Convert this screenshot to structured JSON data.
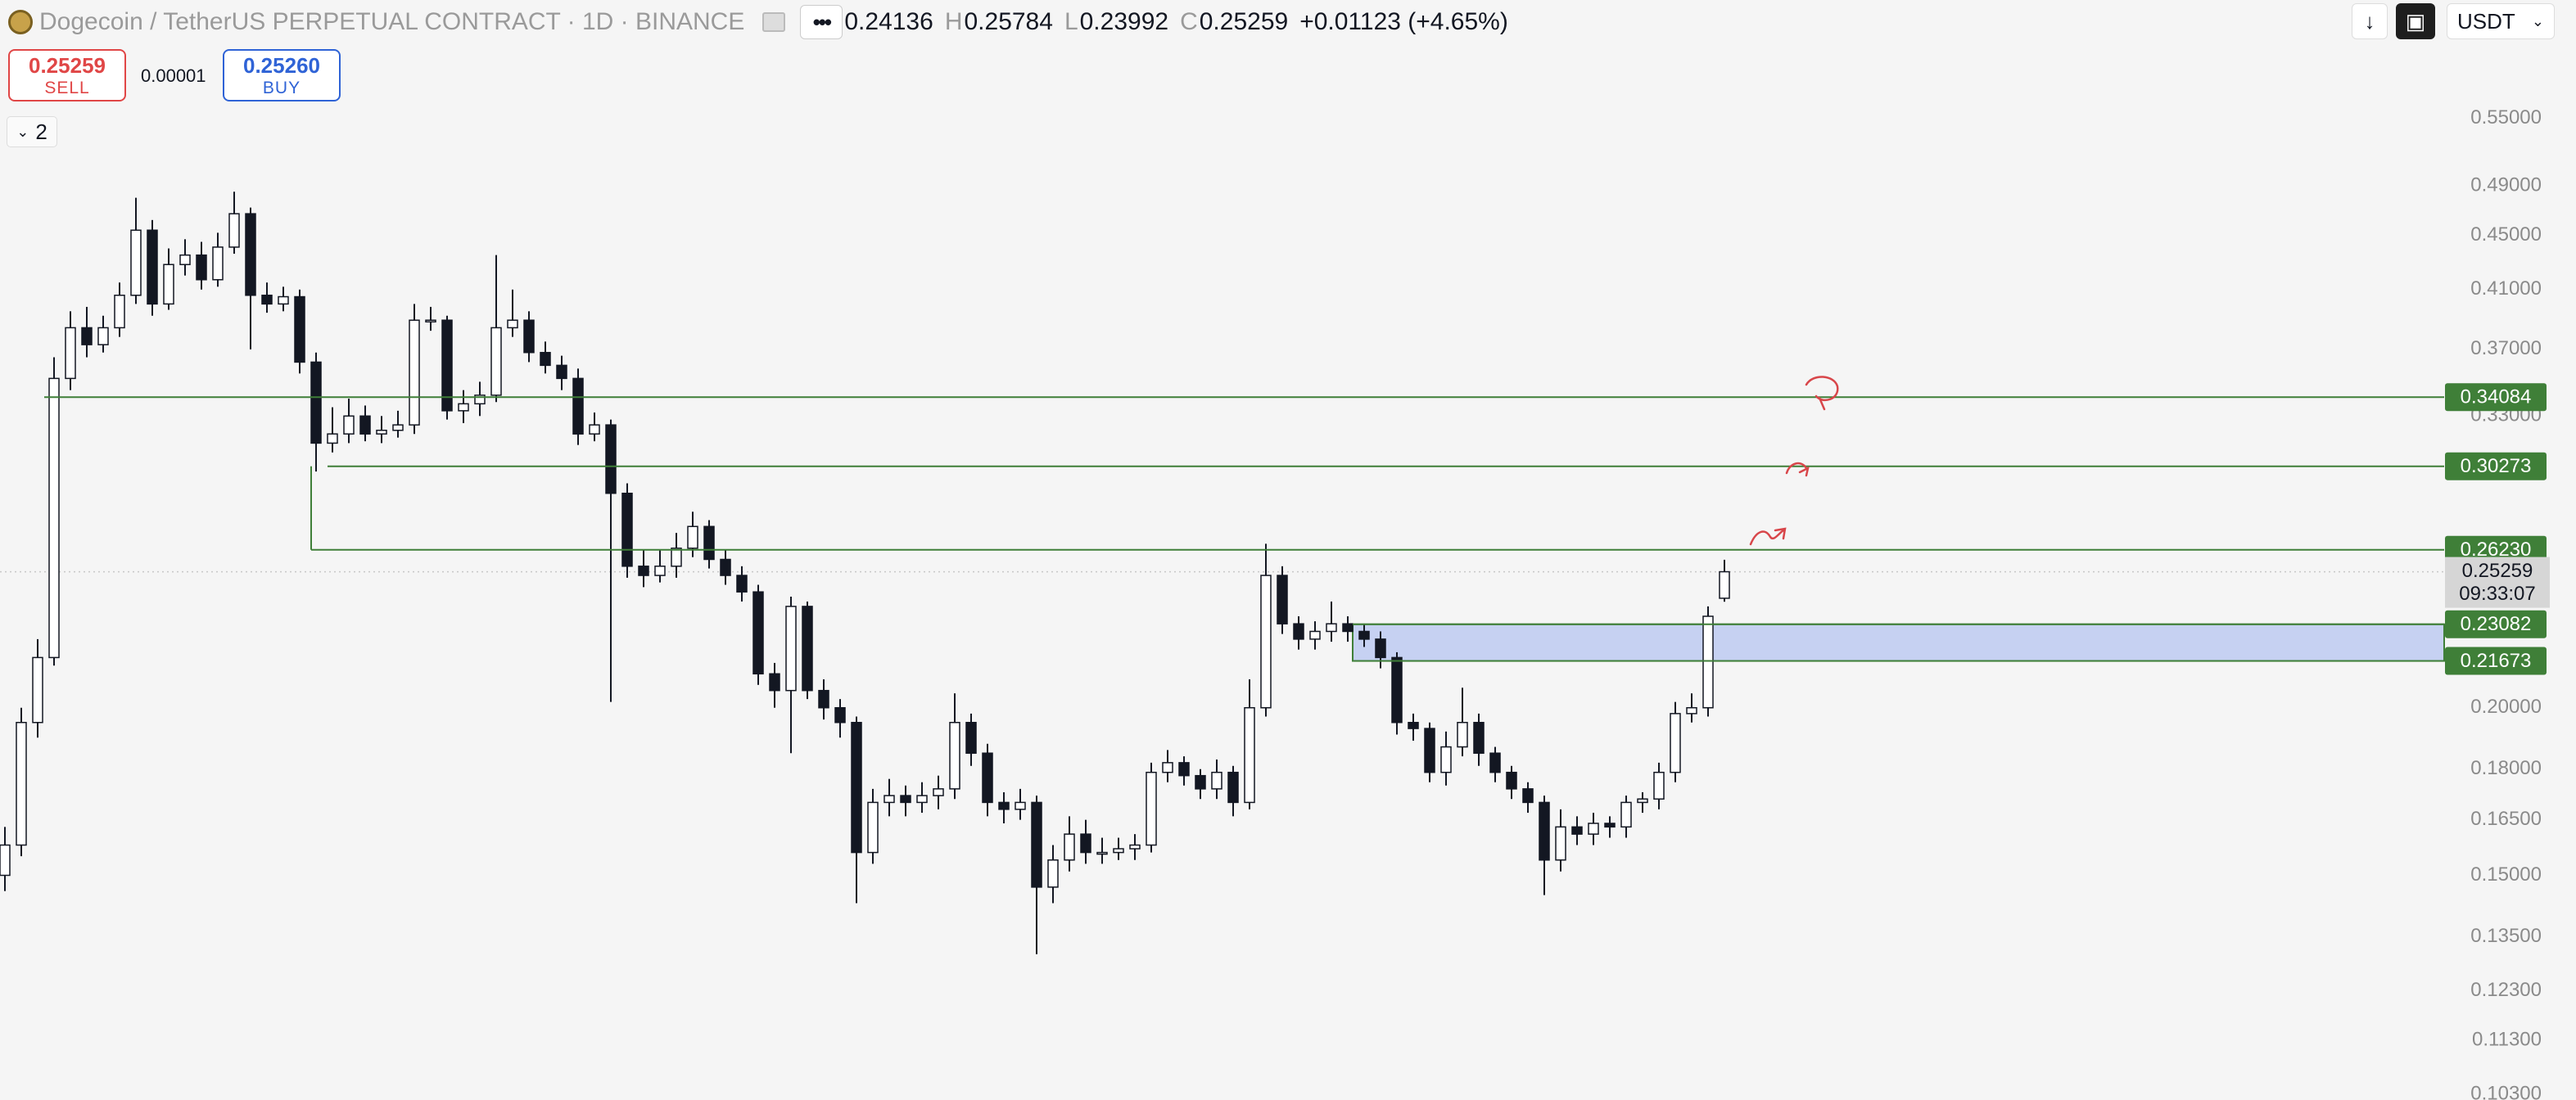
{
  "header": {
    "symbol": "Dogecoin / TetherUS PERPETUAL CONTRACT · 1D · BINANCE",
    "open": "0.24136",
    "high_key": "H",
    "high": "0.25784",
    "low_key": "L",
    "low": "0.23992",
    "close_key": "C",
    "close": "0.25259",
    "change": "+0.01123 (+4.65%)",
    "currency": "USDT"
  },
  "trade": {
    "sell_price": "0.25259",
    "sell_label": "SELL",
    "spread": "0.00001",
    "buy_price": "0.25260",
    "buy_label": "BUY",
    "indicator_count": "2"
  },
  "chart_data": {
    "type": "candlestick",
    "log_scale": true,
    "ylim": [
      0.102,
      0.674
    ],
    "yticks": [
      {
        "value": 0.55,
        "label": "0.55000"
      },
      {
        "value": 0.49,
        "label": "0.49000"
      },
      {
        "value": 0.45,
        "label": "0.45000"
      },
      {
        "value": 0.41,
        "label": "0.41000"
      },
      {
        "value": 0.37,
        "label": "0.37000"
      },
      {
        "value": 0.33,
        "label": "0.33000"
      },
      {
        "value": 0.2,
        "label": "0.20000"
      },
      {
        "value": 0.18,
        "label": "0.18000"
      },
      {
        "value": 0.165,
        "label": "0.16500"
      },
      {
        "value": 0.15,
        "label": "0.15000"
      },
      {
        "value": 0.135,
        "label": "0.13500"
      },
      {
        "value": 0.123,
        "label": "0.12300"
      },
      {
        "value": 0.113,
        "label": "0.11300"
      },
      {
        "value": 0.103,
        "label": "0.10300"
      }
    ],
    "up_color": "#ffffff",
    "down_color": "#131722",
    "open": [
      0.15,
      0.158,
      0.195,
      0.218,
      0.352,
      0.384,
      0.373,
      0.384,
      0.406,
      0.454,
      0.4,
      0.428,
      0.435,
      0.417,
      0.441,
      0.467,
      0.406,
      0.4,
      0.405,
      0.362,
      0.315,
      0.32,
      0.33,
      0.32,
      0.322,
      0.325,
      0.389,
      0.389,
      0.333,
      0.337,
      0.342,
      0.384,
      0.389,
      0.368,
      0.36,
      0.352,
      0.32,
      0.325,
      0.289,
      0.255,
      0.251,
      0.255,
      0.263,
      0.273,
      0.258,
      0.251,
      0.244,
      0.212,
      0.206,
      0.238,
      0.206,
      0.2,
      0.195,
      0.156,
      0.17,
      0.172,
      0.17,
      0.172,
      0.174,
      0.195,
      0.185,
      0.17,
      0.168,
      0.17,
      0.147,
      0.154,
      0.161,
      0.156,
      0.156,
      0.157,
      0.158,
      0.179,
      0.182,
      0.178,
      0.174,
      0.179,
      0.17,
      0.2,
      0.251,
      0.231,
      0.225,
      0.228,
      0.231,
      0.228,
      0.225,
      0.218,
      0.195,
      0.193,
      0.179,
      0.187,
      0.195,
      0.185,
      0.179,
      0.174,
      0.17,
      0.154,
      0.163,
      0.161,
      0.164,
      0.163,
      0.17,
      0.171,
      0.179,
      0.198,
      0.2,
      0.24136
    ],
    "high": [
      0.163,
      0.2,
      0.225,
      0.365,
      0.395,
      0.398,
      0.392,
      0.415,
      0.48,
      0.462,
      0.44,
      0.447,
      0.445,
      0.452,
      0.485,
      0.472,
      0.415,
      0.412,
      0.41,
      0.368,
      0.335,
      0.34,
      0.336,
      0.33,
      0.333,
      0.4,
      0.398,
      0.392,
      0.345,
      0.35,
      0.435,
      0.41,
      0.395,
      0.375,
      0.366,
      0.358,
      0.332,
      0.328,
      0.294,
      0.262,
      0.262,
      0.27,
      0.28,
      0.276,
      0.262,
      0.255,
      0.247,
      0.216,
      0.242,
      0.24,
      0.21,
      0.203,
      0.197,
      0.174,
      0.177,
      0.175,
      0.176,
      0.178,
      0.205,
      0.198,
      0.188,
      0.173,
      0.174,
      0.172,
      0.158,
      0.166,
      0.165,
      0.16,
      0.16,
      0.161,
      0.182,
      0.186,
      0.184,
      0.18,
      0.183,
      0.181,
      0.21,
      0.265,
      0.255,
      0.234,
      0.232,
      0.24,
      0.234,
      0.231,
      0.228,
      0.22,
      0.198,
      0.195,
      0.192,
      0.207,
      0.198,
      0.187,
      0.181,
      0.176,
      0.172,
      0.168,
      0.166,
      0.167,
      0.166,
      0.172,
      0.173,
      0.182,
      0.202,
      0.205,
      0.238,
      0.25784
    ],
    "low": [
      0.146,
      0.155,
      0.19,
      0.215,
      0.345,
      0.365,
      0.368,
      0.378,
      0.4,
      0.392,
      0.396,
      0.42,
      0.41,
      0.412,
      0.436,
      0.37,
      0.394,
      0.395,
      0.355,
      0.3,
      0.31,
      0.315,
      0.316,
      0.315,
      0.318,
      0.32,
      0.382,
      0.328,
      0.326,
      0.33,
      0.338,
      0.378,
      0.362,
      0.355,
      0.345,
      0.314,
      0.316,
      0.202,
      0.25,
      0.246,
      0.248,
      0.25,
      0.259,
      0.254,
      0.247,
      0.24,
      0.208,
      0.2,
      0.185,
      0.203,
      0.196,
      0.19,
      0.143,
      0.153,
      0.166,
      0.166,
      0.167,
      0.168,
      0.171,
      0.181,
      0.166,
      0.164,
      0.165,
      0.131,
      0.143,
      0.151,
      0.153,
      0.153,
      0.154,
      0.154,
      0.156,
      0.176,
      0.175,
      0.171,
      0.171,
      0.166,
      0.168,
      0.197,
      0.227,
      0.221,
      0.221,
      0.224,
      0.224,
      0.222,
      0.214,
      0.191,
      0.189,
      0.176,
      0.175,
      0.184,
      0.181,
      0.176,
      0.171,
      0.167,
      0.145,
      0.151,
      0.158,
      0.158,
      0.16,
      0.16,
      0.167,
      0.168,
      0.176,
      0.195,
      0.197,
      0.23992
    ],
    "close": [
      0.158,
      0.195,
      0.218,
      0.352,
      0.384,
      0.373,
      0.384,
      0.406,
      0.454,
      0.4,
      0.428,
      0.435,
      0.417,
      0.441,
      0.467,
      0.406,
      0.4,
      0.405,
      0.362,
      0.315,
      0.32,
      0.33,
      0.32,
      0.322,
      0.325,
      0.389,
      0.389,
      0.333,
      0.337,
      0.342,
      0.384,
      0.389,
      0.368,
      0.36,
      0.352,
      0.32,
      0.325,
      0.289,
      0.255,
      0.251,
      0.255,
      0.263,
      0.273,
      0.258,
      0.251,
      0.244,
      0.212,
      0.206,
      0.238,
      0.206,
      0.2,
      0.195,
      0.156,
      0.17,
      0.172,
      0.17,
      0.172,
      0.174,
      0.195,
      0.185,
      0.17,
      0.168,
      0.17,
      0.147,
      0.154,
      0.161,
      0.156,
      0.156,
      0.157,
      0.158,
      0.179,
      0.182,
      0.178,
      0.174,
      0.179,
      0.17,
      0.2,
      0.251,
      0.231,
      0.225,
      0.228,
      0.231,
      0.228,
      0.225,
      0.218,
      0.195,
      0.193,
      0.179,
      0.187,
      0.195,
      0.185,
      0.179,
      0.174,
      0.17,
      0.154,
      0.163,
      0.161,
      0.164,
      0.163,
      0.17,
      0.171,
      0.179,
      0.198,
      0.2,
      0.234,
      0.25259
    ],
    "levels": [
      {
        "value": 0.34084,
        "label": "0.34084"
      },
      {
        "value": 0.30273,
        "label": "0.30273"
      },
      {
        "value": 0.2623,
        "label": "0.26230"
      },
      {
        "value": 0.23082,
        "label": "0.23082"
      },
      {
        "value": 0.21673,
        "label": "0.21673"
      }
    ],
    "level_color": "#3f7f38",
    "zone_color": "#c6d1f2",
    "last_price": 0.25259,
    "countdown": "09:33:07"
  }
}
